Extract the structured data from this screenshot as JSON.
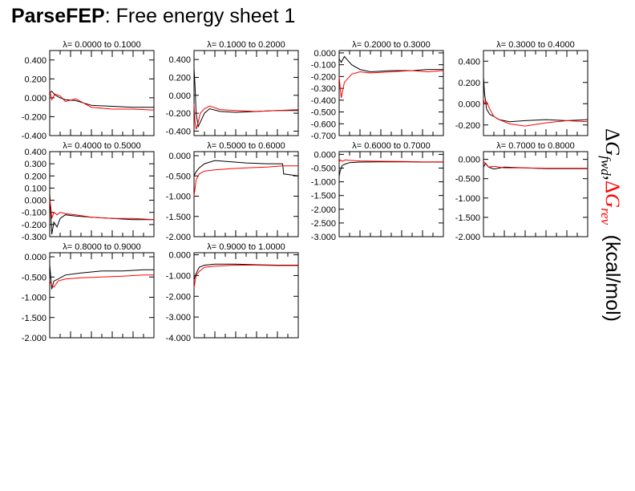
{
  "header": {
    "app_name": "ParseFEP",
    "title_rest": ": Free energy sheet 1"
  },
  "ylabel": {
    "delta": "Δ",
    "g": "G",
    "fwd": "fwd",
    "comma": ",",
    "rev": "rev",
    "unit": "(kcal/mol)"
  },
  "colors": {
    "forward": "#000000",
    "reverse": "#ff0000"
  },
  "chart_data": [
    {
      "type": "line",
      "title": "λ= 0.0000 to   0.1000",
      "ylim": [
        -0.4,
        0.5
      ],
      "yticks": [
        0.4,
        0.2,
        0.0,
        -0.2,
        -0.4
      ],
      "ytick_labels": [
        "0.400",
        "0.200",
        "0.000",
        "-0.200",
        "-0.400"
      ],
      "x": [
        0,
        0.02,
        0.05,
        0.1,
        0.15,
        0.25,
        0.4,
        0.6,
        0.8,
        1.0
      ],
      "series": [
        {
          "values": [
            0.05,
            0.07,
            0.03,
            0.0,
            -0.02,
            -0.03,
            -0.08,
            -0.09,
            -0.1,
            -0.1
          ]
        },
        {
          "values": [
            0.08,
            -0.02,
            0.04,
            0.02,
            -0.04,
            -0.01,
            -0.1,
            -0.12,
            -0.12,
            -0.13
          ]
        }
      ]
    },
    {
      "type": "line",
      "title": "λ= 0.1000 to   0.2000",
      "ylim": [
        -0.45,
        0.5
      ],
      "yticks": [
        0.4,
        0.2,
        0.0,
        -0.2,
        -0.4
      ],
      "ytick_labels": [
        "0.400",
        "0.200",
        "0.000",
        "-0.200",
        "-0.400"
      ],
      "x": [
        0,
        0.01,
        0.02,
        0.04,
        0.06,
        0.1,
        0.15,
        0.25,
        0.4,
        0.6,
        0.8,
        1.0
      ],
      "series": [
        {
          "values": [
            0.3,
            0.1,
            -0.2,
            -0.35,
            -0.3,
            -0.2,
            -0.15,
            -0.18,
            -0.19,
            -0.18,
            -0.17,
            -0.17
          ]
        },
        {
          "values": [
            -0.1,
            -0.3,
            -0.38,
            -0.3,
            -0.2,
            -0.15,
            -0.12,
            -0.16,
            -0.17,
            -0.18,
            -0.17,
            -0.16
          ]
        }
      ]
    },
    {
      "type": "line",
      "title": "λ= 0.2000 to   0.3000",
      "ylim": [
        -0.7,
        0.02
      ],
      "yticks": [
        0.0,
        -0.1,
        -0.2,
        -0.3,
        -0.4,
        -0.5,
        -0.6,
        -0.7
      ],
      "ytick_labels": [
        "0.000",
        "-0.100",
        "-0.200",
        "-0.300",
        "-0.400",
        "-0.500",
        "-0.600",
        "-0.700"
      ],
      "x": [
        0,
        0.02,
        0.05,
        0.08,
        0.12,
        0.2,
        0.3,
        0.5,
        0.7,
        0.85,
        1.0
      ],
      "series": [
        {
          "values": [
            -0.05,
            -0.08,
            -0.03,
            -0.06,
            -0.1,
            -0.14,
            -0.16,
            -0.15,
            -0.15,
            -0.14,
            -0.14
          ]
        },
        {
          "values": [
            -0.2,
            -0.38,
            -0.25,
            -0.22,
            -0.18,
            -0.16,
            -0.17,
            -0.16,
            -0.15,
            -0.16,
            -0.15
          ]
        }
      ]
    },
    {
      "type": "line",
      "title": "λ= 0.3000 to   0.4000",
      "ylim": [
        -0.3,
        0.5
      ],
      "yticks": [
        0.4,
        0.2,
        0.0,
        -0.2
      ],
      "ytick_labels": [
        "0.400",
        "0.200",
        "0.000",
        "-0.200"
      ],
      "x": [
        0,
        0.01,
        0.03,
        0.06,
        0.1,
        0.15,
        0.25,
        0.4,
        0.6,
        0.8,
        1.0
      ],
      "series": [
        {
          "values": [
            0.25,
            0.1,
            -0.05,
            -0.1,
            -0.12,
            -0.15,
            -0.17,
            -0.16,
            -0.15,
            -0.16,
            -0.15
          ]
        },
        {
          "values": [
            0.05,
            0.0,
            0.02,
            -0.05,
            -0.12,
            -0.15,
            -0.19,
            -0.21,
            -0.18,
            -0.16,
            -0.17
          ]
        }
      ]
    },
    {
      "type": "line",
      "title": "λ= 0.4000 to   0.5000",
      "ylim": [
        -0.3,
        0.4
      ],
      "yticks": [
        0.4,
        0.3,
        0.2,
        0.1,
        0.0,
        -0.1,
        -0.2,
        -0.3
      ],
      "ytick_labels": [
        "0.400",
        "0.300",
        "0.200",
        "0.100",
        "0.000",
        "-0.100",
        "-0.200",
        "-0.300"
      ],
      "x": [
        0,
        0.01,
        0.02,
        0.04,
        0.07,
        0.1,
        0.15,
        0.25,
        0.4,
        0.6,
        0.8,
        1.0
      ],
      "series": [
        {
          "values": [
            0.05,
            -0.1,
            -0.28,
            -0.18,
            -0.22,
            -0.15,
            -0.12,
            -0.13,
            -0.14,
            -0.15,
            -0.16,
            -0.16
          ]
        },
        {
          "values": [
            0.0,
            -0.05,
            -0.15,
            -0.1,
            -0.12,
            -0.1,
            -0.11,
            -0.12,
            -0.14,
            -0.15,
            -0.15,
            -0.16
          ]
        }
      ]
    },
    {
      "type": "line",
      "title": "λ= 0.5000 to   0.6000",
      "ylim": [
        -2.0,
        0.1
      ],
      "yticks": [
        0.0,
        -0.5,
        -1.0,
        -1.5,
        -2.0
      ],
      "ytick_labels": [
        "0.000",
        "-0.500",
        "-1.000",
        "-1.500",
        "-2.000"
      ],
      "x": [
        0,
        0.02,
        0.05,
        0.1,
        0.2,
        0.35,
        0.5,
        0.7,
        0.85,
        0.86,
        1.0
      ],
      "series": [
        {
          "values": [
            -0.5,
            -0.4,
            -0.3,
            -0.2,
            -0.12,
            -0.15,
            -0.18,
            -0.2,
            -0.2,
            -0.45,
            -0.5
          ]
        },
        {
          "values": [
            -1.0,
            -0.6,
            -0.45,
            -0.38,
            -0.35,
            -0.32,
            -0.3,
            -0.28,
            -0.25,
            -0.25,
            -0.25
          ]
        }
      ]
    },
    {
      "type": "line",
      "title": "λ= 0.6000 to   0.7000",
      "ylim": [
        -3.0,
        0.1
      ],
      "yticks": [
        0.0,
        -0.5,
        -1.0,
        -1.5,
        -2.0,
        -2.5,
        -3.0
      ],
      "ytick_labels": [
        "0.000",
        "-0.500",
        "-1.000",
        "-1.500",
        "-2.000",
        "-2.500",
        "-3.000"
      ],
      "x": [
        0,
        0.01,
        0.03,
        0.06,
        0.1,
        0.2,
        0.4,
        0.6,
        0.8,
        1.0
      ],
      "series": [
        {
          "values": [
            -0.8,
            -0.6,
            -0.4,
            -0.35,
            -0.3,
            -0.28,
            -0.27,
            -0.27,
            -0.28,
            -0.28
          ]
        },
        {
          "values": [
            -0.3,
            -0.2,
            -0.25,
            -0.2,
            -0.22,
            -0.24,
            -0.25,
            -0.26,
            -0.27,
            -0.27
          ]
        }
      ]
    },
    {
      "type": "line",
      "title": "λ= 0.7000 to   0.8000",
      "ylim": [
        -2.0,
        0.2
      ],
      "yticks": [
        0.0,
        -0.5,
        -1.0,
        -1.5,
        -2.0
      ],
      "ytick_labels": [
        "0.000",
        "-0.500",
        "-1.000",
        "-1.500",
        "-2.000"
      ],
      "x": [
        0,
        0.02,
        0.05,
        0.1,
        0.2,
        0.4,
        0.6,
        0.8,
        1.0
      ],
      "series": [
        {
          "values": [
            -0.2,
            -0.1,
            -0.2,
            -0.25,
            -0.2,
            -0.22,
            -0.24,
            -0.24,
            -0.24
          ]
        },
        {
          "values": [
            -0.05,
            -0.12,
            -0.2,
            -0.18,
            -0.22,
            -0.22,
            -0.23,
            -0.23,
            -0.23
          ]
        }
      ]
    },
    {
      "type": "line",
      "title": "λ= 0.8000 to   0.9000",
      "ylim": [
        -2.0,
        0.1
      ],
      "yticks": [
        0.0,
        -0.5,
        -1.0,
        -1.5,
        -2.0
      ],
      "ytick_labels": [
        "0.000",
        "-0.500",
        "-1.000",
        "-1.500",
        "-2.000"
      ],
      "x": [
        0,
        0.02,
        0.04,
        0.08,
        0.15,
        0.3,
        0.5,
        0.7,
        0.9,
        1.0
      ],
      "series": [
        {
          "values": [
            -0.2,
            -0.8,
            -0.6,
            -0.55,
            -0.45,
            -0.4,
            -0.35,
            -0.35,
            -0.32,
            -0.32
          ]
        },
        {
          "values": [
            -0.6,
            -0.7,
            -0.75,
            -0.6,
            -0.55,
            -0.52,
            -0.5,
            -0.48,
            -0.45,
            -0.45
          ]
        }
      ]
    },
    {
      "type": "line",
      "title": "λ= 0.9000 to   1.0000",
      "ylim": [
        -4.0,
        0.1
      ],
      "yticks": [
        0.0,
        -1.0,
        -2.0,
        -3.0,
        -4.0
      ],
      "ytick_labels": [
        "0.000",
        "-1.000",
        "-2.000",
        "-3.000",
        "-4.000"
      ],
      "x": [
        0,
        0.02,
        0.05,
        0.1,
        0.2,
        0.4,
        0.6,
        0.8,
        1.0
      ],
      "series": [
        {
          "values": [
            -1.2,
            -0.9,
            -0.6,
            -0.5,
            -0.45,
            -0.45,
            -0.48,
            -0.5,
            -0.5
          ]
        },
        {
          "values": [
            -1.6,
            -1.0,
            -0.8,
            -0.6,
            -0.55,
            -0.5,
            -0.5,
            -0.52,
            -0.52
          ]
        }
      ]
    }
  ]
}
